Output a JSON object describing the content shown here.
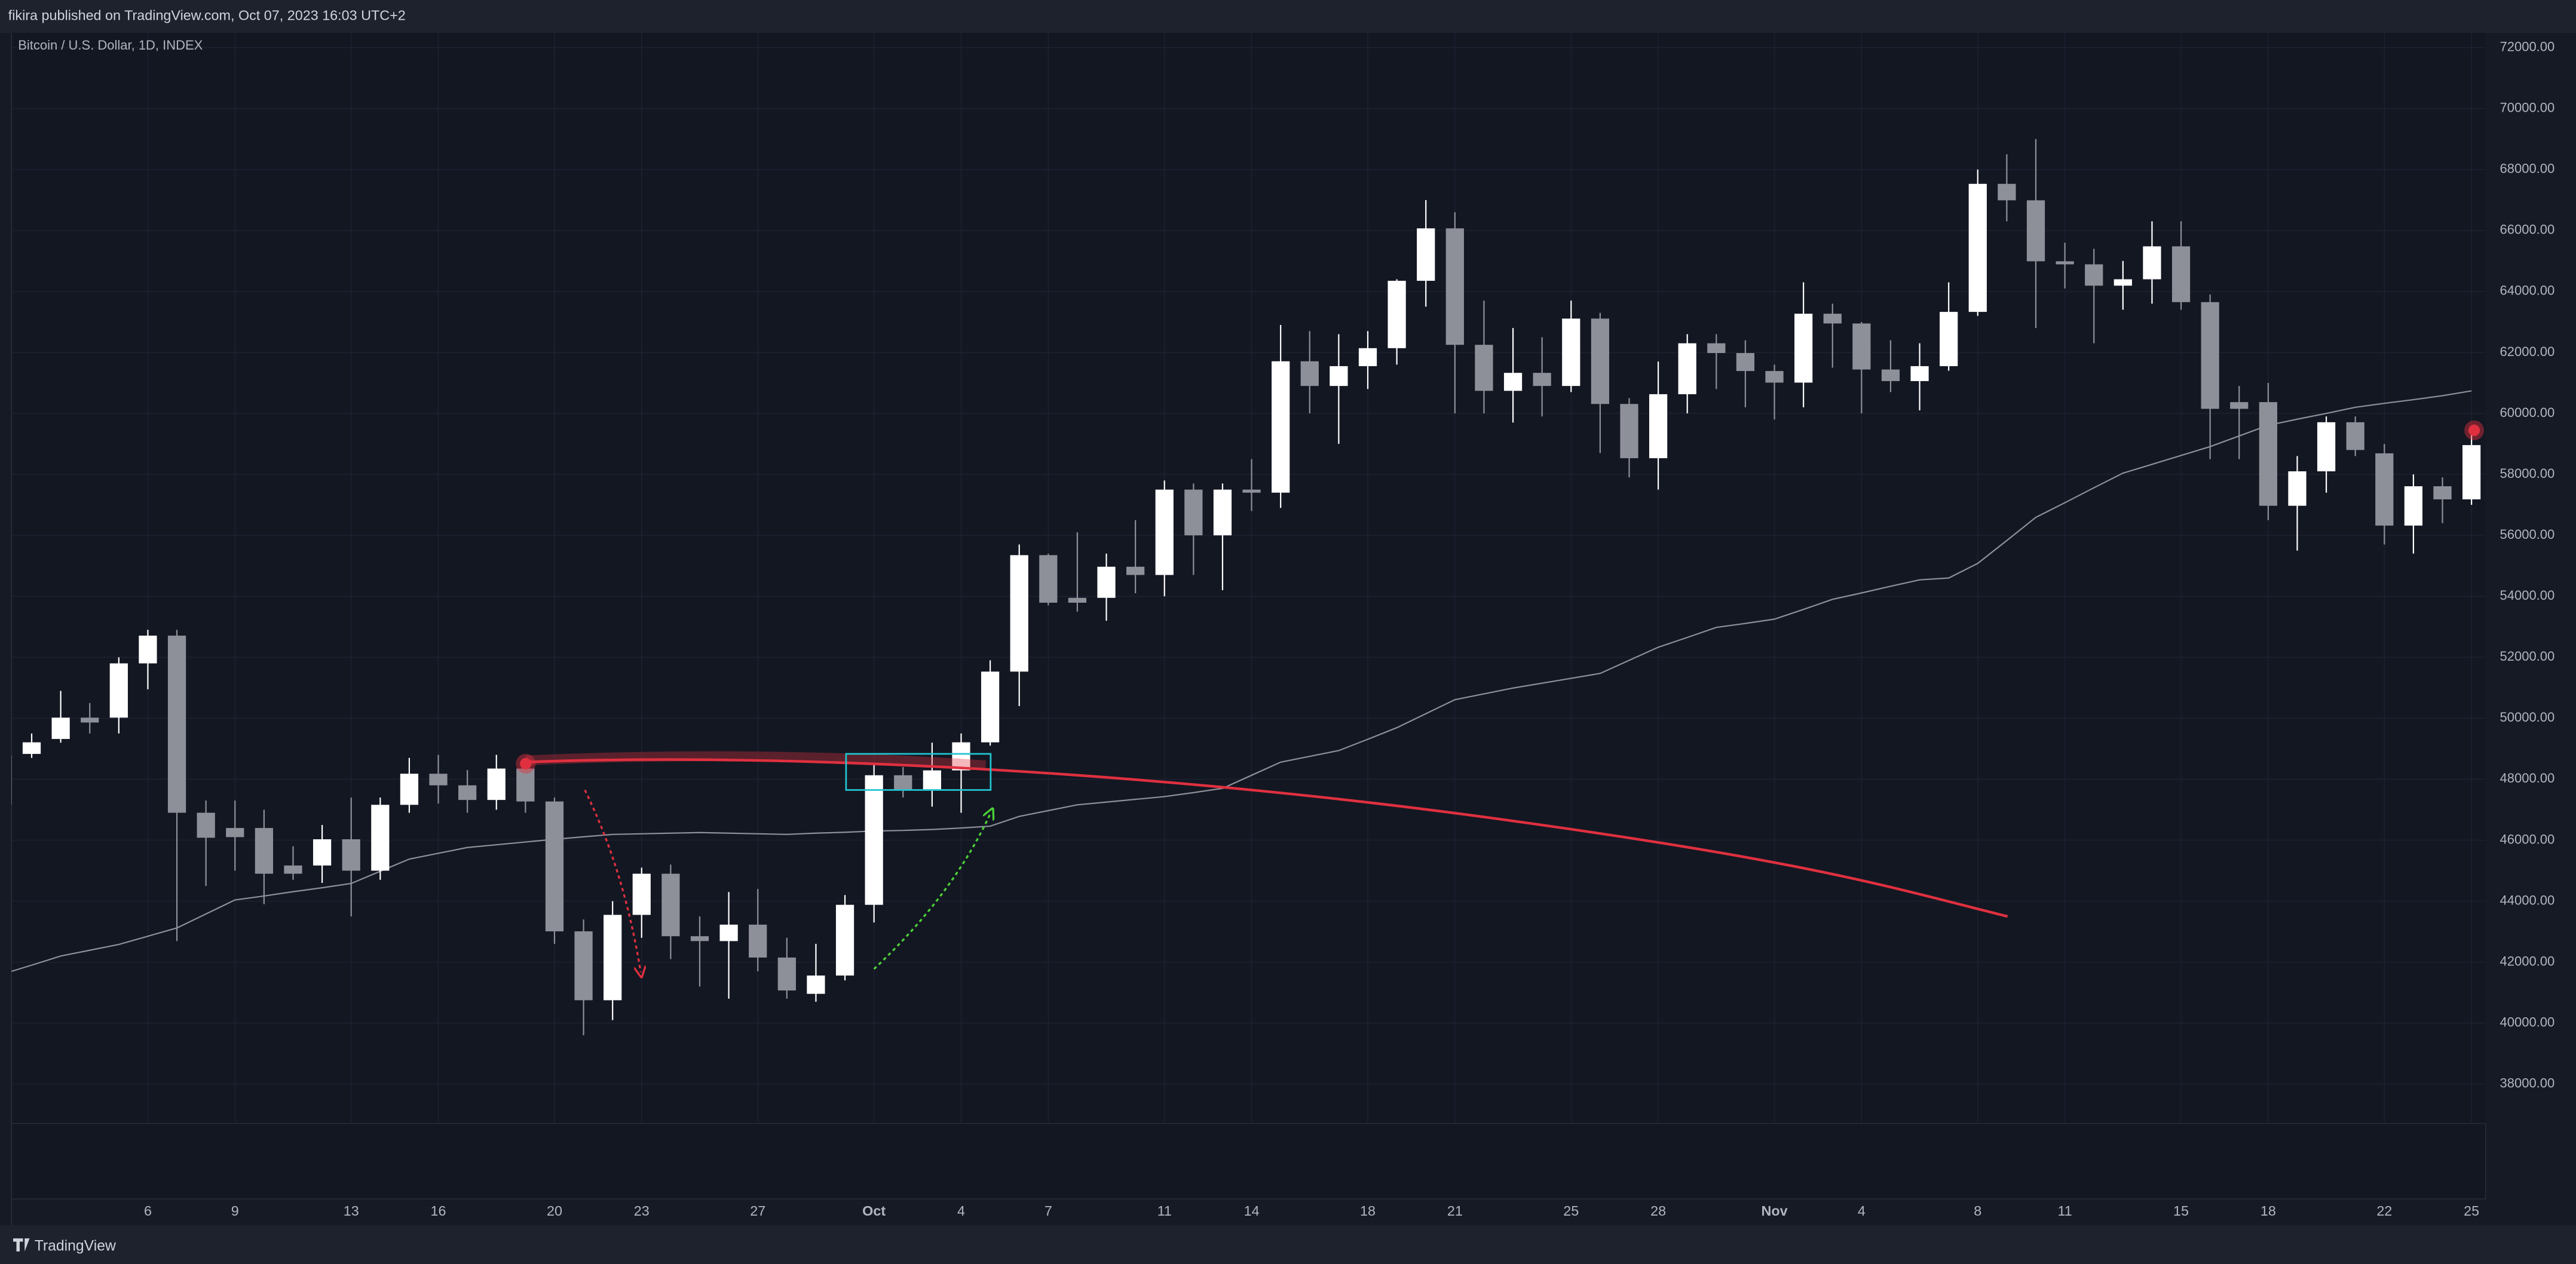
{
  "header": {
    "publisher": "fikira published on TradingView.com, Oct 07, 2023 16:03 UTC+2"
  },
  "footer": {
    "brand": "TradingView"
  },
  "chart_data": {
    "type": "candlestick",
    "title": "Bitcoin / U.S. Dollar, 1D, INDEX",
    "categories": [
      null,
      null,
      null,
      null,
      null,
      "6",
      null,
      null,
      "9",
      null,
      null,
      null,
      "13",
      null,
      null,
      "16",
      null,
      null,
      null,
      "20",
      null,
      null,
      "23",
      null,
      null,
      null,
      "27",
      null,
      null,
      null,
      "Oct",
      null,
      null,
      "4",
      null,
      null,
      "7",
      null,
      null,
      null,
      "11",
      null,
      null,
      "14",
      null,
      null,
      null,
      "18",
      null,
      null,
      "21",
      null,
      null,
      null,
      "25",
      null,
      null,
      "28",
      null,
      null,
      null,
      "Nov",
      null,
      null,
      "4",
      null,
      null,
      null,
      "8",
      null,
      null,
      "11",
      null,
      null,
      null,
      "15",
      null,
      null,
      "18",
      null,
      null,
      null,
      "22",
      null,
      null,
      "25"
    ],
    "open": [
      47160,
      48830,
      49320,
      50020,
      50020,
      51800,
      52710,
      46900,
      46400,
      46400,
      45170,
      45170,
      46030,
      45000,
      47160,
      48180,
      47800,
      47320,
      48350,
      47270,
      43010,
      40750,
      43550,
      44900,
      42850,
      42690,
      43230,
      42150,
      40960,
      41560,
      43880,
      48130,
      47650,
      48290,
      49210,
      51530,
      55350,
      53950,
      53950,
      54970,
      54700,
      57500,
      56000,
      57500,
      57400,
      61710,
      60900,
      61550,
      62140,
      64350,
      66070,
      62250,
      60740,
      61330,
      60900,
      63110,
      60310,
      58530,
      60630,
      62300,
      61980,
      61390,
      61010,
      63270,
      62950,
      61440,
      61060,
      61550,
      63330,
      67530,
      66990,
      64990,
      64890,
      64190,
      64400,
      65480,
      63650,
      60370,
      60370,
      56970,
      58100,
      59710,
      58690,
      56320,
      57610,
      57180
    ],
    "high": [
      48900,
      49500,
      50900,
      50500,
      52000,
      52900,
      52900,
      47300,
      47300,
      47000,
      45800,
      46500,
      47400,
      47400,
      48700,
      48800,
      48300,
      48800,
      48400,
      47400,
      43400,
      44000,
      45100,
      45200,
      43500,
      44300,
      44400,
      42800,
      42600,
      44200,
      48500,
      48400,
      49200,
      49500,
      51900,
      55700,
      55400,
      56100,
      55400,
      56500,
      57800,
      57700,
      57700,
      58500,
      62900,
      62700,
      62600,
      62700,
      64400,
      67000,
      66600,
      63700,
      62800,
      62500,
      63700,
      63300,
      60500,
      61700,
      62600,
      62600,
      62400,
      61600,
      64300,
      63600,
      63000,
      62400,
      62300,
      64300,
      68000,
      68500,
      69000,
      65600,
      65400,
      65000,
      66300,
      66300,
      63900,
      60900,
      61000,
      58600,
      59900,
      59900,
      59000,
      58000,
      57900,
      59300
    ],
    "low": [
      47000,
      48700,
      49200,
      49500,
      49500,
      50950,
      42690,
      44500,
      45000,
      43900,
      44700,
      44600,
      43500,
      44700,
      46900,
      47200,
      46900,
      47000,
      46900,
      42600,
      39600,
      40100,
      42800,
      42100,
      41200,
      40800,
      41700,
      40800,
      40700,
      41400,
      43300,
      47400,
      47100,
      46900,
      49100,
      50400,
      53700,
      53500,
      53200,
      54100,
      54000,
      54700,
      54200,
      56800,
      56900,
      60000,
      59000,
      60800,
      61600,
      63500,
      60000,
      60000,
      59700,
      59900,
      60700,
      58700,
      57900,
      57500,
      60000,
      60800,
      60200,
      59800,
      60200,
      61500,
      60000,
      60700,
      60100,
      61400,
      63200,
      66300,
      62800,
      64100,
      62300,
      63400,
      63600,
      63400,
      58500,
      58500,
      56500,
      55500,
      57400,
      58600,
      55700,
      55400,
      56400,
      57000
    ],
    "close": [
      48780,
      49210,
      50020,
      49860,
      51800,
      52710,
      46900,
      46080,
      46100,
      44900,
      44900,
      46030,
      45000,
      47160,
      48180,
      47800,
      47320,
      48350,
      47270,
      43010,
      40750,
      43550,
      44900,
      42850,
      42690,
      43230,
      42150,
      41070,
      41560,
      43880,
      48130,
      47650,
      48290,
      49210,
      51530,
      55350,
      53790,
      53790,
      54970,
      54700,
      57500,
      56000,
      57500,
      57400,
      61710,
      60900,
      61550,
      62140,
      64350,
      66070,
      62250,
      60740,
      61330,
      60900,
      63110,
      60310,
      58530,
      60630,
      62300,
      61980,
      61390,
      61010,
      63270,
      62950,
      61440,
      61060,
      61550,
      63330,
      67530,
      66990,
      64990,
      64890,
      64190,
      64400,
      65480,
      63650,
      60150,
      60150,
      56970,
      58100,
      59710,
      58800,
      56320,
      57610,
      57180,
      58960
    ],
    "up_color": "#ffffff",
    "down_color": "#8e9099",
    "overlay_line": {
      "color": "#8e9099",
      "values": [
        41610,
        41900,
        42200,
        42390,
        42580,
        42850,
        43120,
        43580,
        44040,
        44170,
        44310,
        44440,
        44580,
        44980,
        45380,
        45570,
        45760,
        45850,
        45940,
        46030,
        46110,
        46190,
        46210,
        46230,
        46250,
        46230,
        46210,
        46190,
        46230,
        46260,
        46300,
        46320,
        46350,
        46400,
        46460,
        46780,
        46970,
        47160,
        47250,
        47340,
        47430,
        47560,
        47700,
        48130,
        48560,
        48750,
        48940,
        49310,
        49690,
        50150,
        50610,
        50800,
        50990,
        51150,
        51310,
        51470,
        51900,
        52330,
        52650,
        52980,
        53110,
        53250,
        53570,
        53900,
        54110,
        54330,
        54540,
        54600,
        55080,
        55830,
        56590,
        57070,
        57560,
        58040,
        58330,
        58620,
        58910,
        59260,
        59610,
        59810,
        60000,
        60200,
        60330,
        60450,
        60580,
        60740
      ]
    },
    "ylim": [
      36710,
      73560
    ],
    "yticks": [
      {
        "value": 38000,
        "label": "38000.00"
      },
      {
        "value": 40000,
        "label": "40000.00"
      },
      {
        "value": 42000,
        "label": "42000.00"
      },
      {
        "value": 44000,
        "label": "44000.00"
      },
      {
        "value": 46000,
        "label": "46000.00"
      },
      {
        "value": 48000,
        "label": "48000.00"
      },
      {
        "value": 50000,
        "label": "50000.00"
      },
      {
        "value": 52000,
        "label": "52000.00"
      },
      {
        "value": 54000,
        "label": "54000.00"
      },
      {
        "value": 56000,
        "label": "56000.00"
      },
      {
        "value": 58000,
        "label": "58000.00"
      },
      {
        "value": 60000,
        "label": "60000.00"
      },
      {
        "value": 62000,
        "label": "62000.00"
      },
      {
        "value": 64000,
        "label": "64000.00"
      },
      {
        "value": 66000,
        "label": "66000.00"
      },
      {
        "value": 68000,
        "label": "68000.00"
      },
      {
        "value": 70000,
        "label": "70000.00"
      },
      {
        "value": 72000,
        "label": "72000.00"
      }
    ],
    "grid": true
  }
}
